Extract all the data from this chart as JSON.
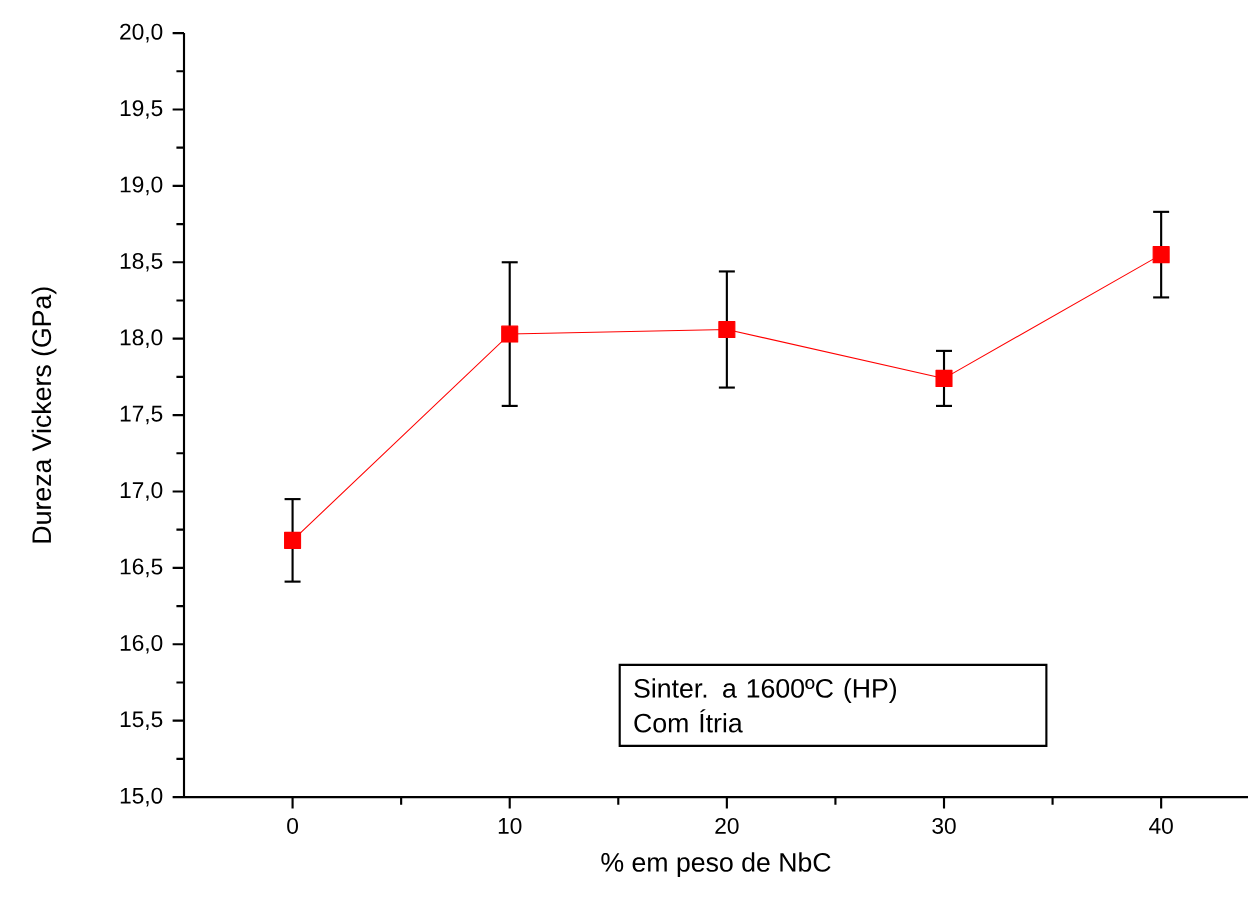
{
  "chart_data": {
    "type": "line",
    "xlabel": "% em peso de NbC",
    "ylabel": "Dureza Vickers (GPa)",
    "x": [
      0,
      10,
      20,
      30,
      40
    ],
    "series": [
      {
        "color": "#ff0000",
        "values": [
          16.68,
          18.03,
          18.06,
          17.74,
          18.55
        ],
        "errors": [
          0.27,
          0.47,
          0.38,
          0.18,
          0.28
        ]
      }
    ],
    "xlim": [
      -5,
      44
    ],
    "ylim": [
      15,
      20
    ],
    "xticks": [
      0,
      10,
      20,
      30,
      40
    ],
    "yticks": [
      {
        "value": 15,
        "label": "15,0"
      },
      {
        "value": 15.5,
        "label": "15,5"
      },
      {
        "value": 16,
        "label": "16,0"
      },
      {
        "value": 16.5,
        "label": "16,5"
      },
      {
        "value": 17,
        "label": "17,0"
      },
      {
        "value": 17.5,
        "label": "17,5"
      },
      {
        "value": 18,
        "label": "18,0"
      },
      {
        "value": 18.5,
        "label": "18,5"
      },
      {
        "value": 19,
        "label": "19,0"
      },
      {
        "value": 19.5,
        "label": "19,5"
      },
      {
        "value": 20,
        "label": "20,0"
      }
    ],
    "annotations": [
      "Sinter. a 1600ºC (HP)",
      "Com Ítria"
    ],
    "marker": "square",
    "line_style": "solid",
    "grid": false
  }
}
